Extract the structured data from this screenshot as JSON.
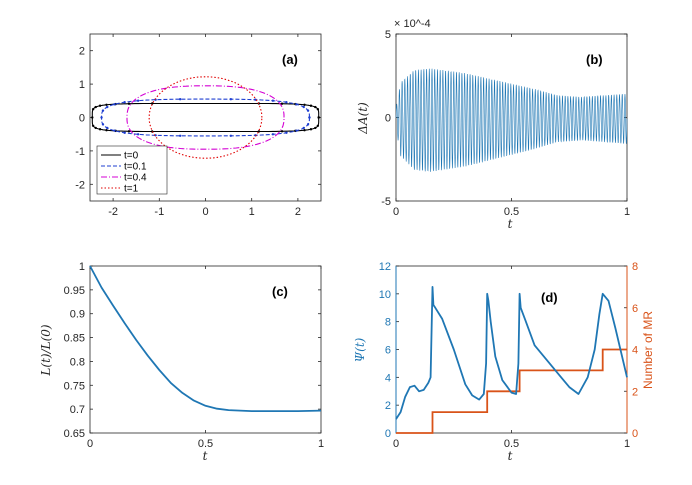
{
  "chart_data": [
    {
      "type": "line",
      "panel": "(a)",
      "xlim": [
        -2.5,
        2.5
      ],
      "ylim": [
        -2.5,
        2.5
      ],
      "xticks": [
        -2,
        -1,
        0,
        1,
        2
      ],
      "xtick_labels": [
        "-2",
        "-1",
        "0",
        "1",
        "2"
      ],
      "yticks": [
        -2,
        -1,
        0,
        1,
        2
      ],
      "ytick_labels": [
        "-2",
        "-1",
        "0",
        "1",
        "2"
      ],
      "legend_placement": "bottom-left",
      "series": [
        {
          "name": "t=0",
          "color": "#000000",
          "shape": {
            "half_width": 2.45,
            "half_height": 0.42,
            "exponent": 6
          }
        },
        {
          "name": "t=0.1",
          "color": "#1f3fd1",
          "shape": {
            "half_width": 2.25,
            "half_height": 0.55,
            "exponent": 3.2
          }
        },
        {
          "name": "t=0.4",
          "color": "#d400d4",
          "shape": {
            "half_width": 1.7,
            "half_height": 0.95,
            "exponent": 2.5
          }
        },
        {
          "name": "t=1",
          "color": "#e00000",
          "shape": {
            "half_width": 1.22,
            "half_height": 1.22,
            "exponent": 2
          }
        }
      ]
    },
    {
      "type": "line",
      "panel": "(b)",
      "xlabel": "t",
      "ylabel": "ΔA(t)",
      "exponent_label": "× 10^-4",
      "xlim": [
        0,
        1
      ],
      "ylim": [
        -5,
        5
      ],
      "xticks": [
        0,
        0.5,
        1
      ],
      "xtick_labels": [
        "0",
        "0.5",
        "1"
      ],
      "yticks": [
        -5,
        0,
        5
      ],
      "ytick_labels": [
        "-5",
        "0",
        "5"
      ],
      "series": [
        {
          "name": "ΔA(t)",
          "color": "#1f77b4",
          "oscillations": 85,
          "envelope_t": [
            0,
            0.02,
            0.08,
            0.15,
            0.3,
            0.45,
            0.6,
            0.7,
            0.8,
            0.9,
            1.0
          ],
          "envelope_amp": [
            0.6,
            2.2,
            3.0,
            3.1,
            2.8,
            2.3,
            1.8,
            1.4,
            1.3,
            1.4,
            1.5
          ]
        }
      ]
    },
    {
      "type": "line",
      "panel": "(c)",
      "xlabel": "t",
      "ylabel": "L(t)/L(0)",
      "xlim": [
        0,
        1
      ],
      "ylim": [
        0.65,
        1
      ],
      "xticks": [
        0,
        0.5,
        1
      ],
      "xtick_labels": [
        "0",
        "0.5",
        "1"
      ],
      "yticks": [
        0.65,
        0.7,
        0.75,
        0.8,
        0.85,
        0.9,
        0.95,
        1
      ],
      "ytick_labels": [
        "0.65",
        "0.7",
        "0.75",
        "0.8",
        "0.85",
        "0.9",
        "0.95",
        "1"
      ],
      "series": [
        {
          "name": "L(t)/L(0)",
          "color": "#1f77b4",
          "x": [
            0,
            0.05,
            0.1,
            0.15,
            0.2,
            0.25,
            0.3,
            0.35,
            0.4,
            0.45,
            0.5,
            0.55,
            0.6,
            0.7,
            0.8,
            0.9,
            1.0
          ],
          "y": [
            1.0,
            0.955,
            0.917,
            0.88,
            0.845,
            0.812,
            0.782,
            0.755,
            0.734,
            0.718,
            0.707,
            0.701,
            0.698,
            0.696,
            0.696,
            0.696,
            0.697
          ]
        }
      ]
    },
    {
      "type": "line",
      "panel": "(d)",
      "xlabel": "t",
      "ylabel": "Ψ(t)",
      "ylabel_right": "Number of MR",
      "xlim": [
        0,
        1
      ],
      "ylim": [
        0,
        12
      ],
      "ylim_right": [
        0,
        8
      ],
      "xticks": [
        0,
        0.5,
        1
      ],
      "xtick_labels": [
        "0",
        "0.5",
        "1"
      ],
      "yticks": [
        0,
        2,
        4,
        6,
        8,
        10,
        12
      ],
      "ytick_labels": [
        "0",
        "2",
        "4",
        "6",
        "8",
        "10",
        "12"
      ],
      "yticks_right": [
        0,
        2,
        4,
        6,
        8
      ],
      "ytick_labels_right": [
        "0",
        "2",
        "4",
        "6",
        "8"
      ],
      "series": [
        {
          "name": "Ψ(t)",
          "color": "#1f77b4",
          "axis": "left",
          "x": [
            0,
            0.02,
            0.04,
            0.06,
            0.08,
            0.1,
            0.12,
            0.14,
            0.15,
            0.158,
            0.162,
            0.17,
            0.2,
            0.25,
            0.3,
            0.33,
            0.36,
            0.38,
            0.39,
            0.395,
            0.4,
            0.41,
            0.43,
            0.46,
            0.5,
            0.52,
            0.53,
            0.535,
            0.54,
            0.56,
            0.6,
            0.65,
            0.7,
            0.75,
            0.79,
            0.83,
            0.86,
            0.88,
            0.895,
            0.92,
            0.95,
            1.0
          ],
          "y": [
            1.0,
            1.5,
            2.6,
            3.3,
            3.4,
            3.0,
            3.1,
            3.6,
            4.0,
            10.5,
            9.2,
            9.0,
            8.2,
            6.0,
            3.5,
            2.7,
            2.4,
            2.8,
            5.0,
            10.0,
            9.5,
            8.0,
            5.5,
            3.8,
            2.9,
            2.8,
            5.0,
            10.0,
            9.0,
            8.1,
            6.3,
            5.3,
            4.3,
            3.3,
            2.8,
            4.0,
            6.0,
            8.5,
            10.0,
            9.5,
            7.5,
            4.0
          ]
        },
        {
          "name": "Number of MR",
          "color": "#d95319",
          "axis": "right",
          "step": true,
          "x": [
            0,
            0.158,
            0.158,
            0.395,
            0.395,
            0.535,
            0.535,
            0.895,
            0.895,
            1.0
          ],
          "y": [
            0,
            0,
            1,
            1,
            2,
            2,
            3,
            3,
            4,
            4
          ]
        }
      ]
    }
  ]
}
